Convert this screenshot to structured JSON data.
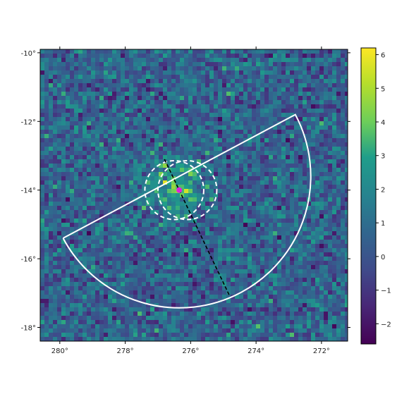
{
  "chart_data": {
    "type": "heatmap",
    "title": "",
    "xlabel": "",
    "ylabel": "",
    "x_axis": {
      "range_deg": [
        280.6,
        271.2
      ],
      "inverted": true,
      "ticks": [
        280,
        278,
        276,
        274,
        272
      ],
      "tick_labels": [
        "280°",
        "278°",
        "276°",
        "274°",
        "272°"
      ]
    },
    "y_axis": {
      "range_deg": [
        -18.4,
        -9.9
      ],
      "ticks": [
        -10,
        -12,
        -14,
        -16,
        -18
      ],
      "tick_labels": [
        "-10°",
        "-12°",
        "-14°",
        "-16°",
        "-18°"
      ]
    },
    "colormap": "viridis",
    "colorbar": {
      "range": [
        -2.6,
        6.2
      ],
      "ticks": [
        6,
        5,
        4,
        3,
        2,
        1,
        0,
        -1,
        -2
      ],
      "tick_labels": [
        "6",
        "5",
        "4",
        "3",
        "2",
        "1",
        "0",
        "−1",
        "−2"
      ]
    },
    "map_description": "Pixelated significance sky map; mostly values between -2 and 3, with an excess peaking near 5-6 around (276.4°, -13.9°).",
    "overlays": [
      {
        "type": "half-disk",
        "color": "#ffffff",
        "style": "solid",
        "boundary_line_from_deg": [
          279.9,
          -15.4
        ],
        "boundary_line_to_deg": [
          272.8,
          -11.8
        ]
      },
      {
        "type": "circle",
        "color": "#ffffff",
        "style": "dashed",
        "center_deg": [
          276.1,
          -14.0
        ],
        "radius_deg": 0.9
      },
      {
        "type": "circle",
        "color": "#ffffff",
        "style": "dashed",
        "center_deg": [
          276.5,
          -14.0
        ],
        "radius_deg": 0.9
      },
      {
        "type": "line",
        "color": "#000000",
        "style": "dashed",
        "from_deg": [
          276.8,
          -13.1
        ],
        "to_deg": [
          274.8,
          -17.1
        ]
      },
      {
        "type": "marker",
        "color": "#e020e0",
        "position_deg": [
          276.35,
          -14.0
        ]
      }
    ]
  }
}
